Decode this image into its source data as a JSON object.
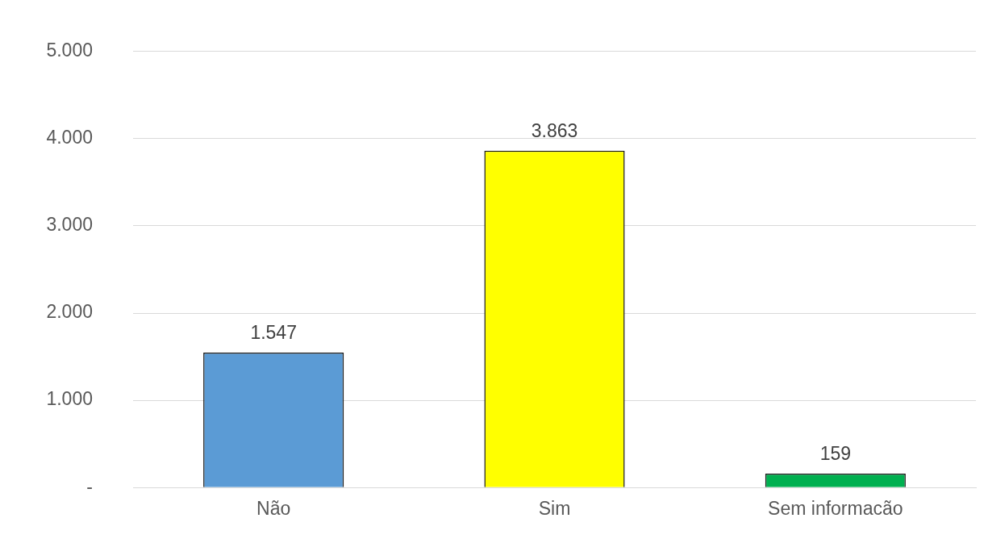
{
  "chart_data": {
    "type": "bar",
    "categories": [
      "Não",
      "Sim",
      "Sem informacão"
    ],
    "values": [
      1547,
      3863,
      159
    ],
    "colors": [
      "#5b9bd5",
      "#ffff00",
      "#00b050"
    ],
    "value_labels": [
      "1.547",
      "3.863",
      "159"
    ],
    "ylim": [
      0,
      5000
    ],
    "yticks": [
      {
        "value": 0,
        "label": "-"
      },
      {
        "value": 1000,
        "label": "1.000"
      },
      {
        "value": 2000,
        "label": "2.000"
      },
      {
        "value": 3000,
        "label": "3.000"
      },
      {
        "value": 4000,
        "label": "4.000"
      },
      {
        "value": 5000,
        "label": "5.000"
      }
    ],
    "grid": "y",
    "legend": false
  }
}
